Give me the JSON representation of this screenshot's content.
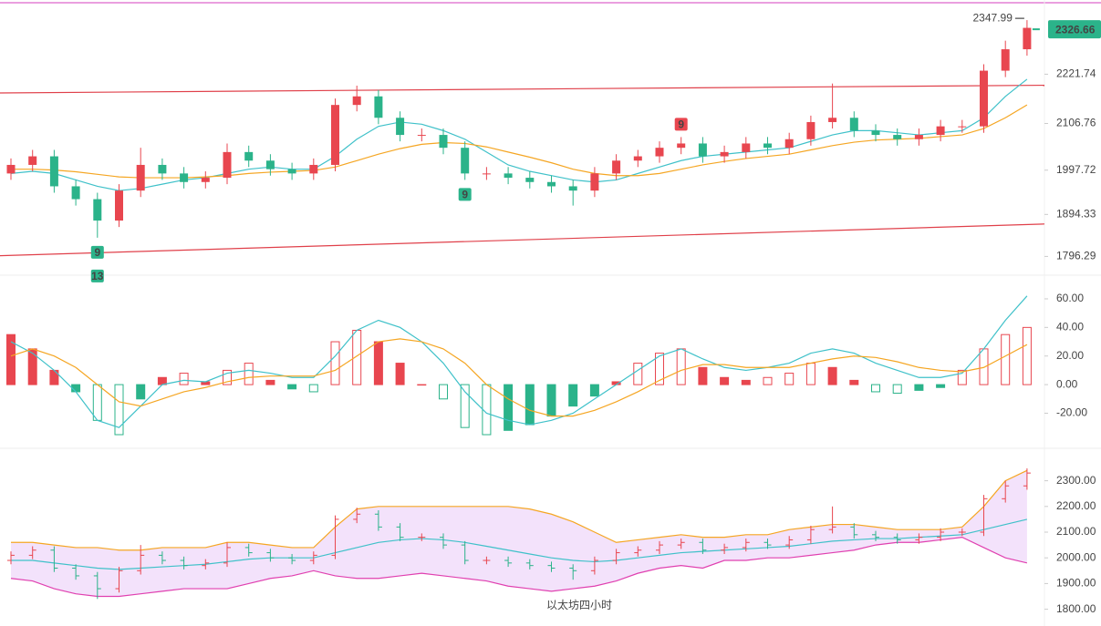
{
  "chart_data": [
    {
      "type": "candlestick",
      "ylim": [
        1761,
        2378
      ],
      "yticks": [
        1796.29,
        1894.33,
        1997.72,
        2106.76,
        2221.74
      ],
      "up_color": "#e8464f",
      "down_color": "#2bb38a",
      "open": [
        1990,
        2010,
        2030,
        1960,
        1930,
        1880,
        1950,
        2010,
        1990,
        1970,
        1980,
        2040,
        2020,
        2000,
        1990,
        2010,
        2150,
        2170,
        2120,
        2080,
        2080,
        2050,
        1990,
        1990,
        1980,
        1970,
        1960,
        1950,
        1990,
        2020,
        2030,
        2050,
        2060,
        2030,
        2040,
        2060,
        2050,
        2070,
        2110,
        2120,
        2090,
        2080,
        2070,
        2080,
        2100,
        2100,
        2230,
        2280
      ],
      "high": [
        2025,
        2045,
        2045,
        1975,
        1945,
        1965,
        2050,
        2025,
        2005,
        1995,
        2060,
        2055,
        2035,
        2015,
        2025,
        2165,
        2195,
        2185,
        2135,
        2095,
        2095,
        2065,
        2005,
        2005,
        1995,
        1985,
        1975,
        2005,
        2035,
        2045,
        2065,
        2075,
        2075,
        2055,
        2075,
        2075,
        2085,
        2125,
        2200,
        2135,
        2105,
        2095,
        2095,
        2115,
        2115,
        2245,
        2300,
        2347.99
      ],
      "low": [
        1975,
        1995,
        1945,
        1915,
        1840,
        1865,
        1935,
        1975,
        1955,
        1955,
        1965,
        2005,
        1985,
        1975,
        1975,
        1995,
        2135,
        2105,
        2065,
        2065,
        2035,
        1975,
        1975,
        1965,
        1955,
        1945,
        1915,
        1935,
        1975,
        2005,
        2015,
        2035,
        2015,
        2015,
        2025,
        2035,
        2035,
        2055,
        2095,
        2075,
        2065,
        2055,
        2055,
        2065,
        2085,
        2085,
        2215,
        2265
      ],
      "close": [
        2010,
        2030,
        1960,
        1930,
        1880,
        1950,
        2010,
        1990,
        1970,
        1980,
        2040,
        2020,
        2000,
        1990,
        2010,
        2150,
        2170,
        2120,
        2080,
        2080,
        2050,
        1990,
        1990,
        1980,
        1970,
        1960,
        1950,
        1990,
        2020,
        2030,
        2050,
        2060,
        2030,
        2040,
        2060,
        2050,
        2070,
        2110,
        2120,
        2090,
        2080,
        2070,
        2080,
        2100,
        2100,
        2230,
        2280,
        2330
      ],
      "series": [
        {
          "color": "#3fc1c9",
          "values": [
            1990,
            1995,
            1990,
            1975,
            1960,
            1950,
            1955,
            1965,
            1975,
            1980,
            1990,
            2000,
            2005,
            2000,
            2000,
            2030,
            2070,
            2100,
            2110,
            2105,
            2090,
            2070,
            2040,
            2010,
            1995,
            1985,
            1975,
            1970,
            1975,
            1990,
            2005,
            2020,
            2030,
            2035,
            2040,
            2045,
            2050,
            2065,
            2080,
            2090,
            2090,
            2085,
            2080,
            2085,
            2090,
            2120,
            2170,
            2210
          ]
        },
        {
          "color": "#f5a623",
          "values": [
            2000,
            2000,
            1998,
            1994,
            1988,
            1982,
            1980,
            1980,
            1980,
            1982,
            1985,
            1990,
            1993,
            1995,
            1997,
            2005,
            2020,
            2035,
            2048,
            2058,
            2062,
            2060,
            2052,
            2040,
            2028,
            2015,
            2000,
            1990,
            1985,
            1985,
            1990,
            2000,
            2010,
            2018,
            2025,
            2030,
            2035,
            2045,
            2055,
            2063,
            2068,
            2070,
            2072,
            2076,
            2080,
            2095,
            2120,
            2150
          ]
        }
      ],
      "trendlines": [
        {
          "color": "#e0404a",
          "values": [
            2178,
            2196
          ]
        },
        {
          "color": "#e0404a",
          "values": [
            1798,
            1872
          ]
        }
      ],
      "last_price": 2326.66,
      "annotations": [
        {
          "text": "9",
          "index": 4,
          "side": "below",
          "color": "#2bb38a"
        },
        {
          "text": "13",
          "index": 4,
          "side": "below2",
          "color": "#2bb38a"
        },
        {
          "text": "9",
          "index": 21,
          "side": "below",
          "color": "#2bb38a"
        },
        {
          "text": "9",
          "index": 31,
          "side": "above",
          "color": "#e8464f"
        }
      ]
    },
    {
      "type": "macd",
      "ylim": [
        -42,
        74
      ],
      "yticks": [
        {
          "value": -20,
          "label": "-20.00"
        },
        {
          "value": 0,
          "label": "0.00"
        },
        {
          "value": 20,
          "label": "20.00"
        },
        {
          "value": 40,
          "label": "40.00"
        },
        {
          "value": 60,
          "label": "60.00"
        }
      ],
      "up_color": "#e8464f",
      "down_color": "#2bb38a",
      "histogram": [
        35,
        25,
        10,
        -5,
        -25,
        -35,
        -10,
        5,
        8,
        2,
        10,
        15,
        3,
        -3,
        -5,
        30,
        38,
        30,
        15,
        0,
        -10,
        -30,
        -35,
        -32,
        -28,
        -22,
        -15,
        -8,
        2,
        15,
        22,
        25,
        12,
        5,
        3,
        5,
        8,
        15,
        12,
        3,
        -5,
        -6,
        -4,
        -2,
        10,
        25,
        35,
        40
      ],
      "series": [
        {
          "color": "#3fc1c9",
          "values": [
            30,
            22,
            10,
            -5,
            -25,
            -30,
            -15,
            0,
            3,
            2,
            8,
            10,
            8,
            5,
            5,
            20,
            38,
            45,
            40,
            30,
            15,
            -5,
            -20,
            -25,
            -28,
            -25,
            -20,
            -10,
            0,
            10,
            20,
            25,
            18,
            12,
            10,
            12,
            15,
            22,
            25,
            22,
            15,
            10,
            5,
            5,
            8,
            25,
            45,
            62
          ]
        },
        {
          "color": "#f5a623",
          "values": [
            20,
            25,
            20,
            12,
            0,
            -12,
            -15,
            -10,
            -5,
            -2,
            2,
            5,
            6,
            6,
            6,
            10,
            20,
            30,
            32,
            30,
            25,
            15,
            0,
            -10,
            -18,
            -22,
            -22,
            -18,
            -12,
            -5,
            3,
            10,
            14,
            14,
            12,
            12,
            12,
            15,
            18,
            20,
            19,
            16,
            12,
            10,
            9,
            12,
            20,
            28
          ]
        }
      ]
    },
    {
      "type": "bollinger",
      "ylim": [
        1749,
        2412
      ],
      "yticks": [
        {
          "value": 1800,
          "label": "1800.00"
        },
        {
          "value": 1900,
          "label": "1900.00"
        },
        {
          "value": 2000,
          "label": "2000.00"
        },
        {
          "value": 2100,
          "label": "2100.00"
        },
        {
          "value": 2200,
          "label": "2200.00"
        },
        {
          "value": 2300,
          "label": "2300.00"
        }
      ],
      "band_color": "#f3e2fb",
      "upper": {
        "color": "#f5a623",
        "values": [
          2060,
          2060,
          2050,
          2040,
          2040,
          2030,
          2030,
          2040,
          2040,
          2040,
          2060,
          2060,
          2050,
          2040,
          2040,
          2120,
          2190,
          2200,
          2200,
          2200,
          2200,
          2200,
          2200,
          2200,
          2190,
          2170,
          2140,
          2100,
          2060,
          2070,
          2080,
          2090,
          2080,
          2080,
          2090,
          2090,
          2110,
          2120,
          2130,
          2130,
          2120,
          2110,
          2110,
          2110,
          2120,
          2200,
          2300,
          2340
        ]
      },
      "middle": {
        "color": "#3fc1c9",
        "values": [
          1990,
          1990,
          1980,
          1970,
          1960,
          1955,
          1960,
          1965,
          1970,
          1975,
          1985,
          1995,
          2000,
          2000,
          2000,
          2020,
          2040,
          2060,
          2070,
          2075,
          2070,
          2060,
          2045,
          2030,
          2015,
          2000,
          1990,
          1985,
          1990,
          2000,
          2010,
          2020,
          2025,
          2030,
          2035,
          2040,
          2045,
          2055,
          2065,
          2070,
          2075,
          2075,
          2080,
          2085,
          2090,
          2110,
          2130,
          2150
        ]
      },
      "lower": {
        "color": "#e040b0",
        "values": [
          1920,
          1910,
          1880,
          1860,
          1850,
          1850,
          1860,
          1870,
          1880,
          1880,
          1880,
          1900,
          1920,
          1930,
          1950,
          1930,
          1920,
          1920,
          1930,
          1940,
          1930,
          1920,
          1910,
          1890,
          1880,
          1870,
          1880,
          1890,
          1910,
          1940,
          1960,
          1970,
          1960,
          1990,
          1990,
          2000,
          2000,
          2010,
          2020,
          2030,
          2050,
          2060,
          2060,
          2070,
          2080,
          2040,
          2000,
          1980
        ]
      },
      "title": "以太坊四小时"
    }
  ]
}
